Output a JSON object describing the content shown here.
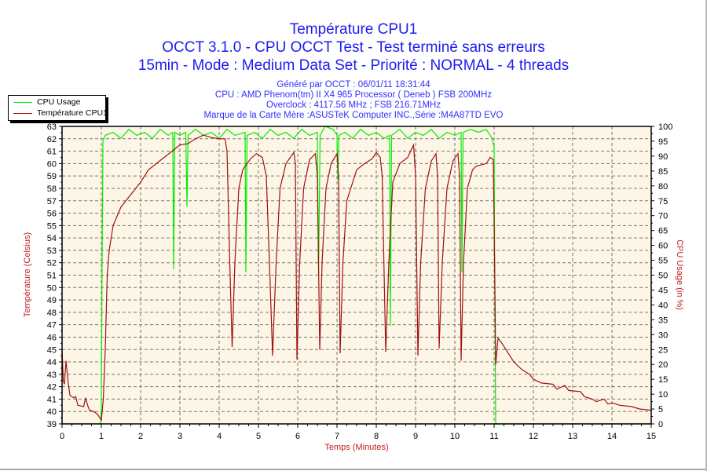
{
  "titles": {
    "line1": "Température CPU1",
    "line2": "OCCT 3.1.0 - CPU OCCT Test - Test terminé sans erreurs",
    "line3": "15min - Mode : Medium Data Set - Priorité : NORMAL - 4 threads"
  },
  "info": {
    "generated": "Généré par OCCT : 06/01/11 18:31:44",
    "cpu": "CPU : AMD Phenom(tm) II X4 965 Processor ( Deneb ) FSB 200MHz",
    "overclock": "Overclock : 4117.56 MHz ; FSB 216.71MHz",
    "motherboard": "Marque de la Carte Mère :ASUSTeK Computer INC.,Série :M4A87TD EVO"
  },
  "colors": {
    "title": "#1c1cf0",
    "cpu_usage": "#00ee00",
    "temperature": "#a01010",
    "axis_label": "#c02020",
    "plot_bg": "#fdf6e6"
  },
  "chart_data": {
    "type": "line",
    "xlabel": "Temps (Minutes)",
    "ylabel": "Température (Celsius)",
    "y2label": "CPU Usage (in %)",
    "xlim": [
      0,
      15
    ],
    "ylim": [
      39,
      63
    ],
    "y2lim": [
      0,
      100
    ],
    "xticks": [
      0,
      1,
      2,
      3,
      4,
      5,
      6,
      7,
      8,
      9,
      10,
      11,
      12,
      13,
      14,
      15
    ],
    "yticks": [
      39,
      40,
      41,
      42,
      43,
      44,
      45,
      46,
      47,
      48,
      49,
      50,
      51,
      52,
      53,
      54,
      55,
      56,
      57,
      58,
      59,
      60,
      61,
      62,
      63
    ],
    "y2ticks": [
      0,
      5,
      10,
      15,
      20,
      25,
      30,
      35,
      40,
      45,
      50,
      55,
      60,
      65,
      70,
      75,
      80,
      85,
      90,
      95,
      100
    ],
    "grid": true,
    "legend": "top-left",
    "series": [
      {
        "name": "CPU Usage",
        "axis": "right",
        "points": [
          [
            0,
            0
          ],
          [
            0.98,
            0
          ],
          [
            1.0,
            5
          ],
          [
            1.02,
            55
          ],
          [
            1.04,
            95
          ],
          [
            1.1,
            97
          ],
          [
            1.3,
            98
          ],
          [
            1.5,
            96
          ],
          [
            1.7,
            99
          ],
          [
            1.9,
            97
          ],
          [
            2.1,
            98
          ],
          [
            2.3,
            96
          ],
          [
            2.5,
            99
          ],
          [
            2.7,
            97
          ],
          [
            2.82,
            98
          ],
          [
            2.84,
            52
          ],
          [
            2.87,
            98
          ],
          [
            3.0,
            97
          ],
          [
            3.15,
            98
          ],
          [
            3.18,
            73
          ],
          [
            3.21,
            97
          ],
          [
            3.4,
            99
          ],
          [
            3.6,
            97
          ],
          [
            3.8,
            98
          ],
          [
            4.0,
            96
          ],
          [
            4.2,
            99
          ],
          [
            4.4,
            97
          ],
          [
            4.66,
            98
          ],
          [
            4.68,
            51
          ],
          [
            4.71,
            97
          ],
          [
            4.9,
            98
          ],
          [
            5.1,
            96
          ],
          [
            5.3,
            99
          ],
          [
            5.5,
            97
          ],
          [
            5.7,
            98
          ],
          [
            5.9,
            96
          ],
          [
            6.1,
            99
          ],
          [
            6.3,
            97
          ],
          [
            6.5,
            98
          ],
          [
            6.53,
            50
          ],
          [
            6.57,
            97
          ],
          [
            6.7,
            100
          ],
          [
            6.9,
            99
          ],
          [
            7.0,
            97
          ],
          [
            7.02,
            82
          ],
          [
            7.05,
            97
          ],
          [
            7.2,
            98
          ],
          [
            7.4,
            96
          ],
          [
            7.6,
            99
          ],
          [
            7.8,
            97
          ],
          [
            8.0,
            98
          ],
          [
            8.2,
            96
          ],
          [
            8.34,
            97
          ],
          [
            8.36,
            33
          ],
          [
            8.39,
            97
          ],
          [
            8.6,
            99
          ],
          [
            8.8,
            96
          ],
          [
            9.0,
            98
          ],
          [
            9.2,
            97
          ],
          [
            9.4,
            99
          ],
          [
            9.6,
            96
          ],
          [
            9.8,
            98
          ],
          [
            10.0,
            97
          ],
          [
            10.16,
            98
          ],
          [
            10.18,
            51
          ],
          [
            10.21,
            98
          ],
          [
            10.4,
            99
          ],
          [
            10.6,
            98
          ],
          [
            10.8,
            99
          ],
          [
            10.95,
            96
          ],
          [
            11.0,
            93
          ],
          [
            11.02,
            40
          ],
          [
            11.04,
            0
          ],
          [
            15,
            0
          ]
        ]
      },
      {
        "name": "Température CPU1",
        "axis": "left",
        "points": [
          [
            0,
            45
          ],
          [
            0.03,
            42.5
          ],
          [
            0.06,
            42.2
          ],
          [
            0.1,
            44.1
          ],
          [
            0.15,
            42.5
          ],
          [
            0.2,
            41.3
          ],
          [
            0.3,
            41.1
          ],
          [
            0.35,
            41.2
          ],
          [
            0.4,
            40.5
          ],
          [
            0.55,
            40.4
          ],
          [
            0.6,
            41.1
          ],
          [
            0.65,
            40.5
          ],
          [
            0.7,
            40.1
          ],
          [
            0.8,
            40
          ],
          [
            0.9,
            39.8
          ],
          [
            1.0,
            39.3
          ],
          [
            1.05,
            41
          ],
          [
            1.1,
            45
          ],
          [
            1.15,
            51
          ],
          [
            1.2,
            53
          ],
          [
            1.3,
            55
          ],
          [
            1.5,
            56.5
          ],
          [
            1.7,
            57.3
          ],
          [
            2.0,
            58.5
          ],
          [
            2.2,
            59.5
          ],
          [
            2.4,
            60
          ],
          [
            2.6,
            60.5
          ],
          [
            2.8,
            61
          ],
          [
            3.0,
            61.5
          ],
          [
            3.2,
            61.6
          ],
          [
            3.4,
            62
          ],
          [
            3.6,
            62.3
          ],
          [
            3.8,
            62.1
          ],
          [
            4.0,
            62
          ],
          [
            4.15,
            62
          ],
          [
            4.2,
            61
          ],
          [
            4.27,
            52
          ],
          [
            4.33,
            45.2
          ],
          [
            4.4,
            52
          ],
          [
            4.5,
            58
          ],
          [
            4.6,
            59.5
          ],
          [
            4.8,
            60.4
          ],
          [
            4.95,
            60.8
          ],
          [
            5.1,
            60.5
          ],
          [
            5.2,
            59
          ],
          [
            5.28,
            52
          ],
          [
            5.36,
            44.5
          ],
          [
            5.45,
            52
          ],
          [
            5.55,
            58
          ],
          [
            5.7,
            60
          ],
          [
            5.9,
            60.9
          ],
          [
            5.94,
            60
          ],
          [
            5.98,
            44.2
          ],
          [
            6.05,
            52
          ],
          [
            6.15,
            58
          ],
          [
            6.3,
            60.3
          ],
          [
            6.45,
            60.8
          ],
          [
            6.5,
            59
          ],
          [
            6.56,
            45
          ],
          [
            6.62,
            52
          ],
          [
            6.72,
            58
          ],
          [
            6.85,
            60
          ],
          [
            7.0,
            60.8
          ],
          [
            7.04,
            59
          ],
          [
            7.08,
            44.7
          ],
          [
            7.15,
            52
          ],
          [
            7.25,
            57
          ],
          [
            7.5,
            59.5
          ],
          [
            7.7,
            60
          ],
          [
            7.9,
            60.4
          ],
          [
            8.0,
            60.9
          ],
          [
            8.1,
            60.5
          ],
          [
            8.15,
            59
          ],
          [
            8.24,
            44.8
          ],
          [
            8.32,
            52
          ],
          [
            8.42,
            58.5
          ],
          [
            8.6,
            60
          ],
          [
            8.8,
            60.5
          ],
          [
            8.95,
            61.5
          ],
          [
            9.0,
            59
          ],
          [
            9.06,
            44.5
          ],
          [
            9.13,
            52
          ],
          [
            9.25,
            58
          ],
          [
            9.4,
            60.2
          ],
          [
            9.52,
            60.8
          ],
          [
            9.56,
            59
          ],
          [
            9.6,
            45.1
          ],
          [
            9.68,
            52
          ],
          [
            9.8,
            58
          ],
          [
            9.95,
            60.2
          ],
          [
            10.08,
            60.8
          ],
          [
            10.12,
            59
          ],
          [
            10.16,
            44.1
          ],
          [
            10.22,
            52
          ],
          [
            10.32,
            58
          ],
          [
            10.45,
            59.5
          ],
          [
            10.55,
            59.8
          ],
          [
            10.8,
            60
          ],
          [
            10.9,
            60.5
          ],
          [
            10.98,
            60.3
          ],
          [
            11.02,
            50
          ],
          [
            11.04,
            43.8
          ],
          [
            11.1,
            45.9
          ],
          [
            11.2,
            45.5
          ],
          [
            11.3,
            45
          ],
          [
            11.4,
            44.5
          ],
          [
            11.5,
            44
          ],
          [
            11.7,
            43.4
          ],
          [
            11.9,
            43
          ],
          [
            12.0,
            42.6
          ],
          [
            12.2,
            42.3
          ],
          [
            12.5,
            42.2
          ],
          [
            12.6,
            41.8
          ],
          [
            12.8,
            42.1
          ],
          [
            12.9,
            41.7
          ],
          [
            13.2,
            41.6
          ],
          [
            13.3,
            41.2
          ],
          [
            13.5,
            41
          ],
          [
            13.6,
            40.8
          ],
          [
            13.8,
            41
          ],
          [
            13.9,
            40.6
          ],
          [
            14.0,
            40.7
          ],
          [
            14.2,
            40.5
          ],
          [
            14.5,
            40.4
          ],
          [
            14.7,
            40.2
          ],
          [
            15,
            40.1
          ]
        ]
      }
    ]
  },
  "legend": {
    "items": [
      "CPU Usage",
      "Température CPU1"
    ]
  }
}
